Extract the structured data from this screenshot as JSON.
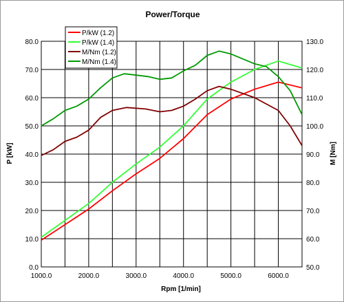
{
  "chart_data": {
    "type": "line",
    "title": "Power/Torque",
    "xlabel": "Rpm [1/min]",
    "ylabel_left": "P [kW]",
    "ylabel_right": "M [Nm]",
    "xlim": [
      1000,
      6500
    ],
    "ylim_left": [
      0,
      80
    ],
    "ylim_right": [
      50,
      130
    ],
    "grid": true,
    "legend_position": "top-left",
    "x_ticks": [
      "1000.0",
      "2000.0",
      "3000.0",
      "4000.0",
      "5000.0",
      "6000.0"
    ],
    "y_ticks_left": [
      "0.0",
      "10.0",
      "20.0",
      "30.0",
      "40.0",
      "50.0",
      "60.0",
      "70.0",
      "80.0"
    ],
    "y_ticks_right": [
      "50.0",
      "60.0",
      "70.0",
      "80.0",
      "90.0",
      "100.0",
      "110.0",
      "120.0",
      "130.0"
    ],
    "series": [
      {
        "name": "P/kW (1.2)",
        "axis": "left",
        "color": "#ff0000",
        "points": [
          [
            1000,
            9.5
          ],
          [
            1500,
            15.0
          ],
          [
            2000,
            20.5
          ],
          [
            2500,
            27.0
          ],
          [
            3000,
            33.0
          ],
          [
            3500,
            38.5
          ],
          [
            4000,
            45.5
          ],
          [
            4500,
            54.0
          ],
          [
            5000,
            59.5
          ],
          [
            5500,
            63.0
          ],
          [
            6000,
            65.5
          ],
          [
            6500,
            63.5
          ]
        ]
      },
      {
        "name": "P/kW (1.4)",
        "axis": "left",
        "color": "#33ff33",
        "points": [
          [
            1000,
            10.5
          ],
          [
            1500,
            16.5
          ],
          [
            2000,
            22.5
          ],
          [
            2500,
            30.0
          ],
          [
            3000,
            36.5
          ],
          [
            3500,
            42.5
          ],
          [
            4000,
            50.0
          ],
          [
            4500,
            59.5
          ],
          [
            5000,
            65.5
          ],
          [
            5500,
            70.0
          ],
          [
            6000,
            73.0
          ],
          [
            6500,
            70.5
          ]
        ]
      },
      {
        "name": "M/Nm (1.2)",
        "axis": "right",
        "color": "#800000",
        "points": [
          [
            1000,
            89.5
          ],
          [
            1250,
            91.5
          ],
          [
            1500,
            94.5
          ],
          [
            1750,
            96.0
          ],
          [
            2000,
            98.5
          ],
          [
            2250,
            103.0
          ],
          [
            2500,
            105.5
          ],
          [
            2800,
            106.5
          ],
          [
            3200,
            106.0
          ],
          [
            3500,
            105.0
          ],
          [
            3750,
            105.5
          ],
          [
            4000,
            107.0
          ],
          [
            4250,
            109.5
          ],
          [
            4500,
            112.5
          ],
          [
            4750,
            114.0
          ],
          [
            5000,
            113.0
          ],
          [
            5500,
            110.0
          ],
          [
            6000,
            105.5
          ],
          [
            6250,
            100.0
          ],
          [
            6500,
            93.0
          ]
        ]
      },
      {
        "name": "M/Nm (1.4)",
        "axis": "right",
        "color": "#009900",
        "points": [
          [
            1000,
            100.0
          ],
          [
            1250,
            102.5
          ],
          [
            1500,
            105.5
          ],
          [
            1750,
            107.0
          ],
          [
            2000,
            109.5
          ],
          [
            2250,
            113.5
          ],
          [
            2500,
            117.0
          ],
          [
            2750,
            118.5
          ],
          [
            3000,
            118.0
          ],
          [
            3250,
            117.5
          ],
          [
            3500,
            116.5
          ],
          [
            3750,
            117.0
          ],
          [
            4000,
            119.5
          ],
          [
            4250,
            121.5
          ],
          [
            4500,
            125.0
          ],
          [
            4750,
            126.5
          ],
          [
            5000,
            125.5
          ],
          [
            5500,
            122.0
          ],
          [
            5750,
            121.0
          ],
          [
            6000,
            117.5
          ],
          [
            6250,
            112.5
          ],
          [
            6500,
            104.0
          ]
        ]
      }
    ]
  }
}
